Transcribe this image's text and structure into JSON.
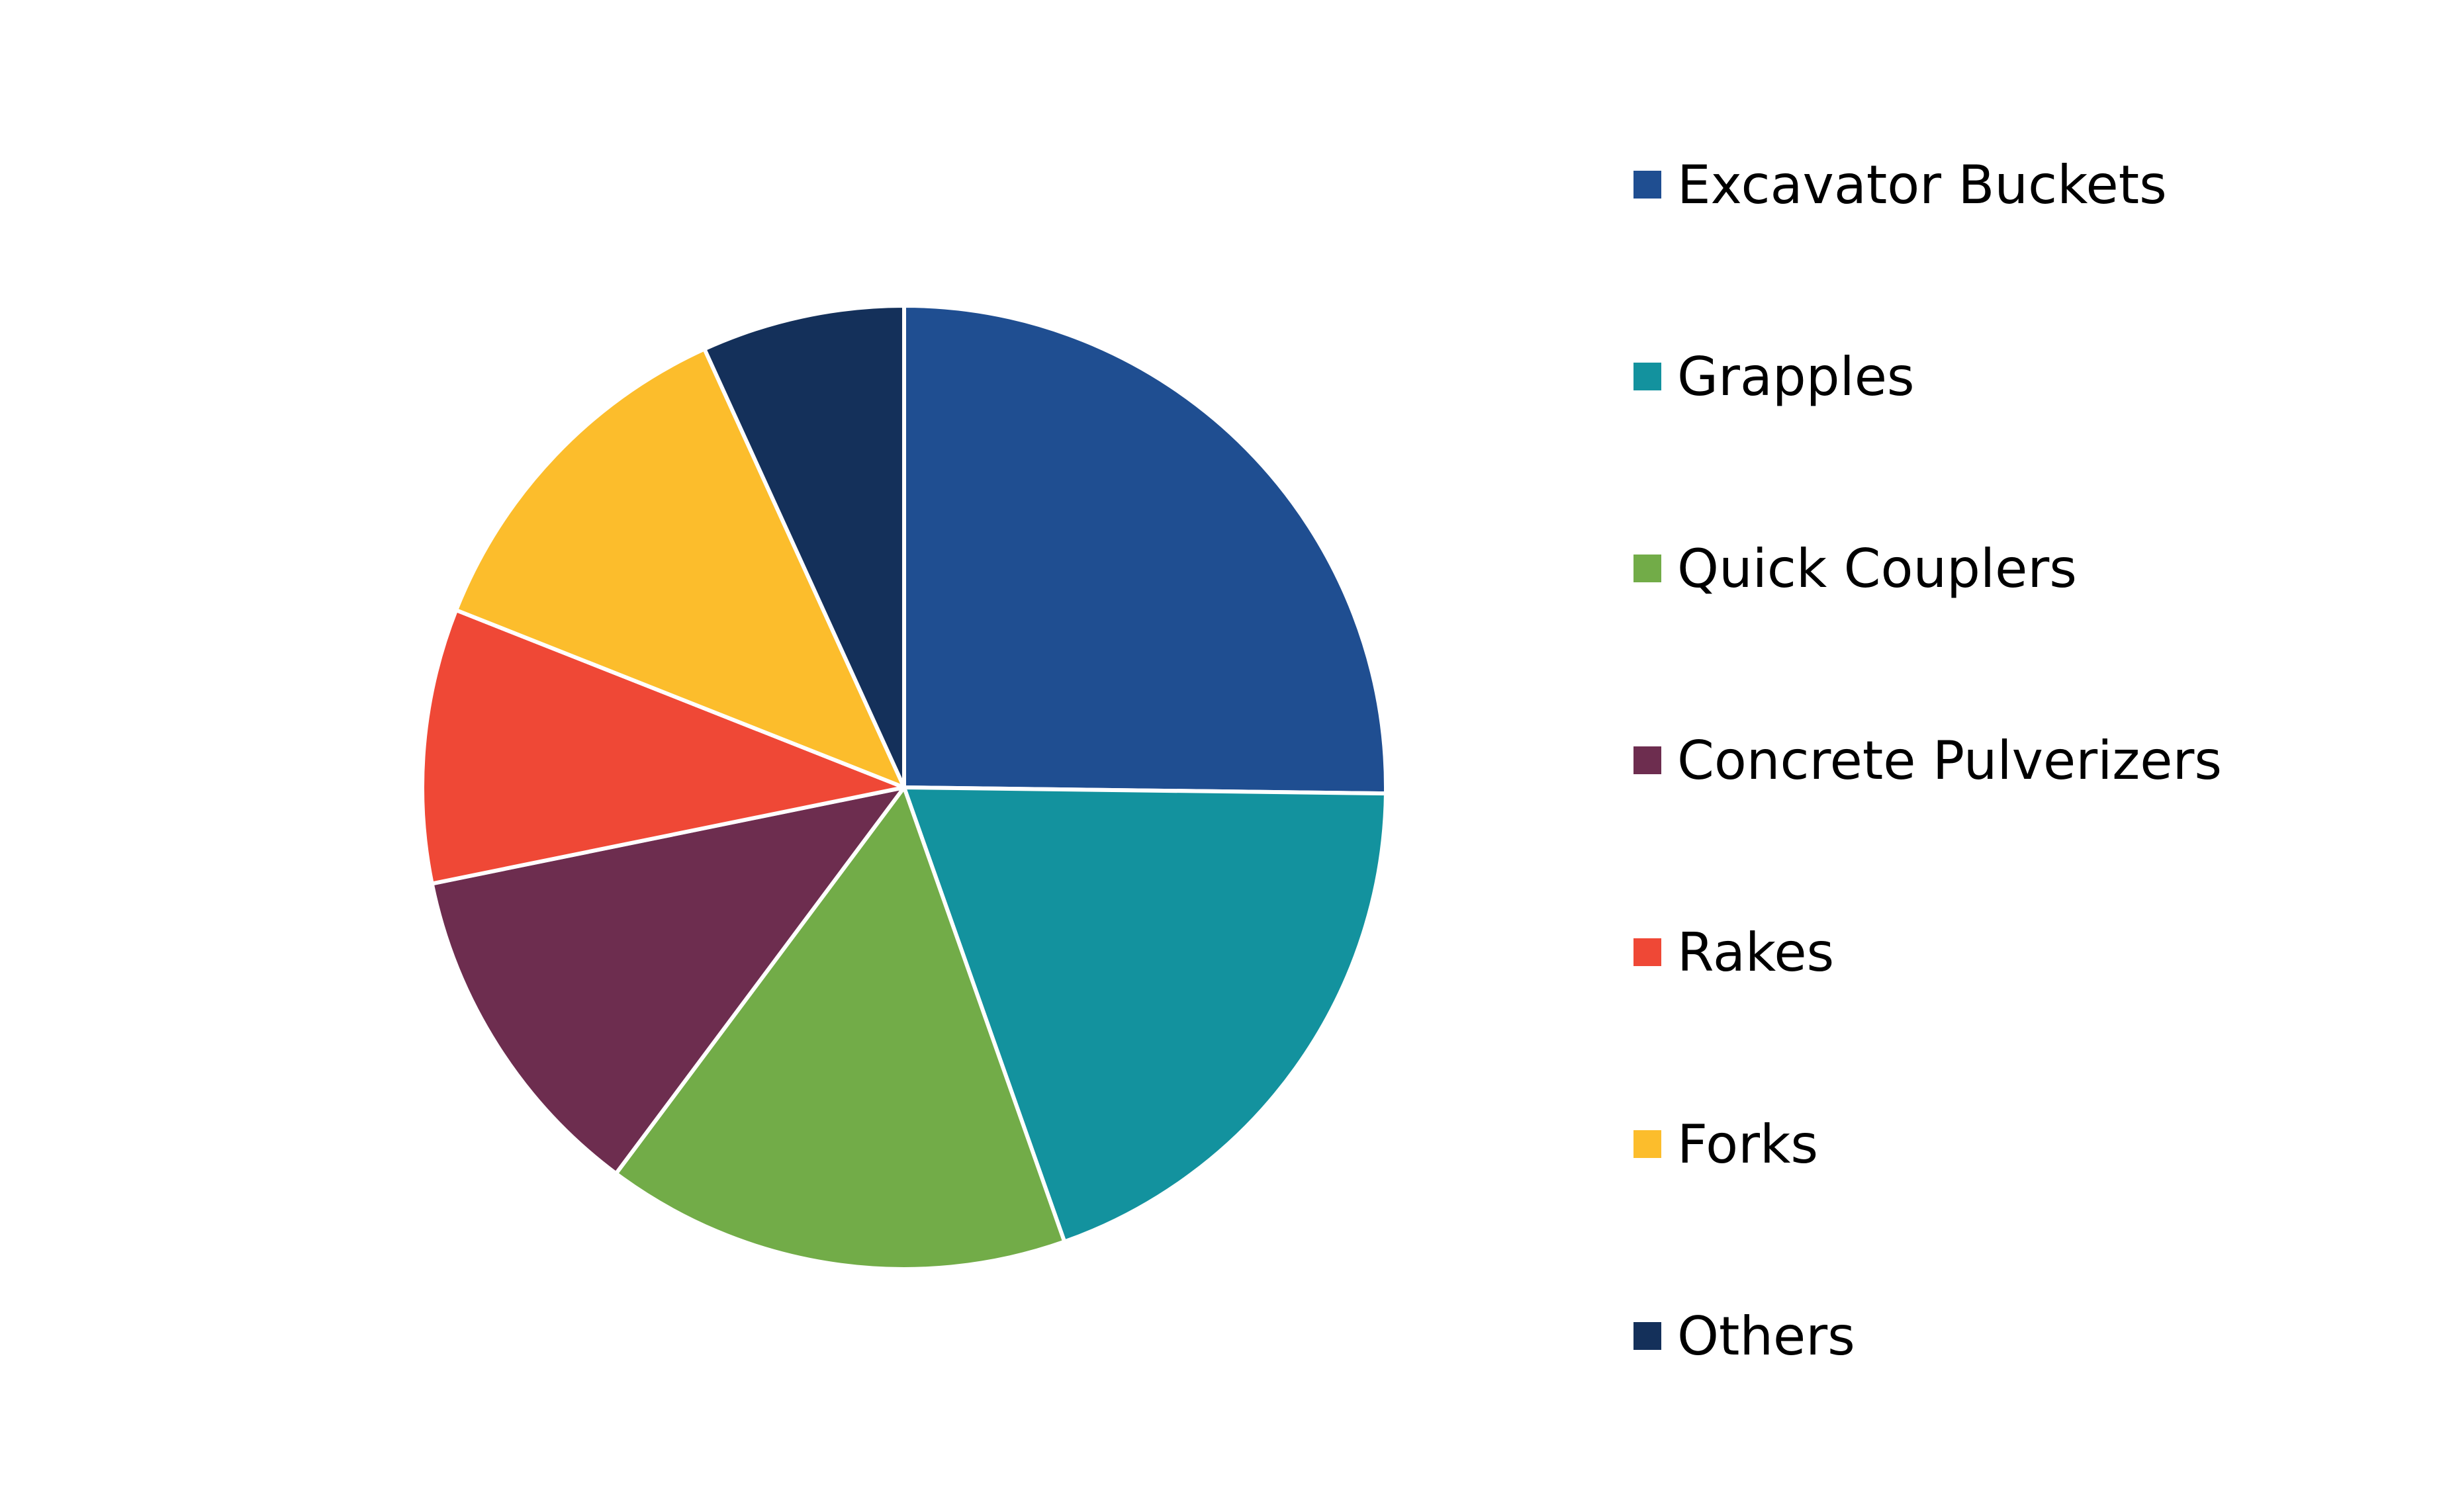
{
  "chart_data": {
    "type": "pie",
    "title": "",
    "legend_position": "right",
    "start_angle_deg": 0,
    "direction": "clockwise",
    "slices": [
      {
        "label": "Excavator Buckets",
        "value": 25.2,
        "color": "#1F4E91"
      },
      {
        "label": "Grapples",
        "value": 19.4,
        "color": "#13929E"
      },
      {
        "label": "Quick Couplers",
        "value": 15.6,
        "color": "#72AC48"
      },
      {
        "label": "Concrete Pulverizers",
        "value": 11.6,
        "color": "#6D2D4F"
      },
      {
        "label": "Rakes",
        "value": 9.2,
        "color": "#EF4836"
      },
      {
        "label": "Forks",
        "value": 12.2,
        "color": "#FCBD2C"
      },
      {
        "label": "Others",
        "value": 6.8,
        "color": "#14305A"
      }
    ]
  }
}
